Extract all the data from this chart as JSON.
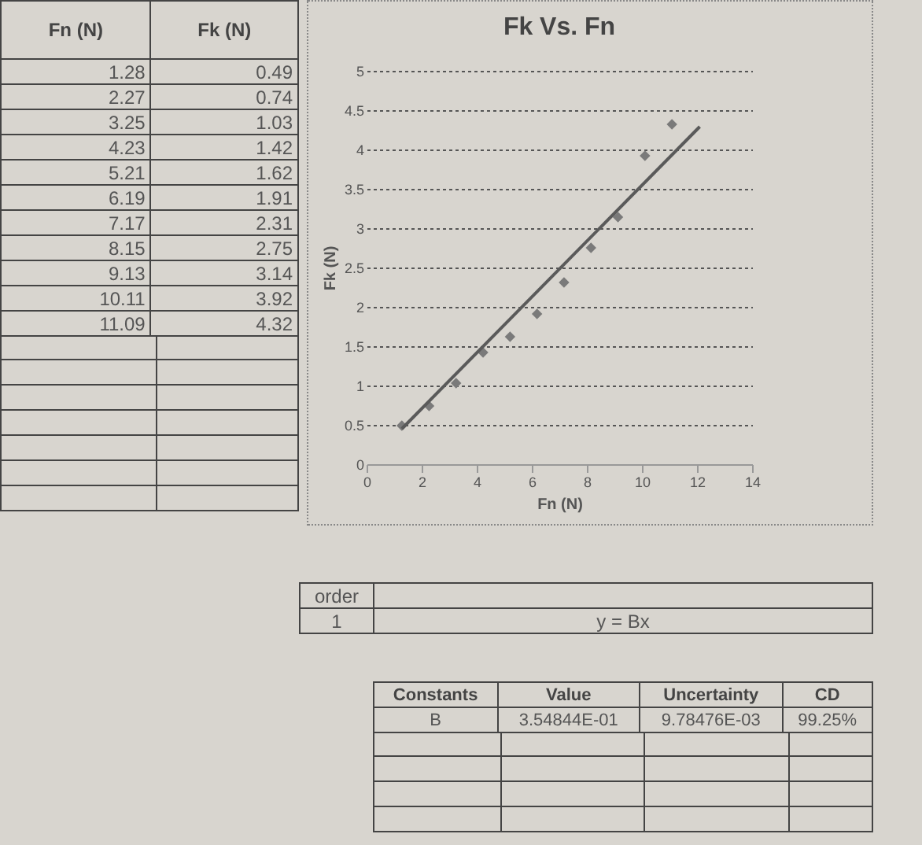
{
  "chart_data": {
    "type": "scatter",
    "title": "Fk Vs. Fn",
    "xlabel": "Fn (N)",
    "ylabel": "Fk (N)",
    "xlim": [
      0,
      14
    ],
    "xticks": [
      0,
      2,
      4,
      6,
      8,
      10,
      12,
      14
    ],
    "ylim": [
      0,
      5
    ],
    "yticks": [
      0,
      0.5,
      1,
      1.5,
      2,
      2.5,
      3,
      3.5,
      4,
      4.5,
      5
    ],
    "grid": "y",
    "series": [
      {
        "marker": "diamond",
        "color": "#7a7a7a",
        "x": [
          1.28,
          2.27,
          3.25,
          4.23,
          5.21,
          6.19,
          7.17,
          8.15,
          9.13,
          10.11,
          11.09
        ],
        "values": [
          0.49,
          0.74,
          1.03,
          1.42,
          1.62,
          1.91,
          2.31,
          2.75,
          3.14,
          3.92,
          4.32
        ]
      },
      {
        "type": "line",
        "color": "#5a5a5a",
        "x": [
          1.28,
          12.1
        ],
        "values": [
          0.45,
          4.29
        ]
      }
    ],
    "annotations": [
      "1.28",
      "2.27",
      "3.25",
      "4.23",
      "5.21",
      "6.19",
      "7.17",
      "8.15",
      "9.13",
      "10.11",
      "11.09",
      "0.49",
      "0.74",
      "1.03",
      "1.42",
      "1.62",
      "1.91",
      "2.31",
      "2.75",
      "3.14",
      "3.92",
      "4.32",
      "order",
      "1",
      "y = Bx",
      "Constants",
      "Value",
      "Uncertainty",
      "CD",
      "B",
      "3.54844E-01",
      "9.78476E-03",
      "99.25%"
    ]
  }
}
